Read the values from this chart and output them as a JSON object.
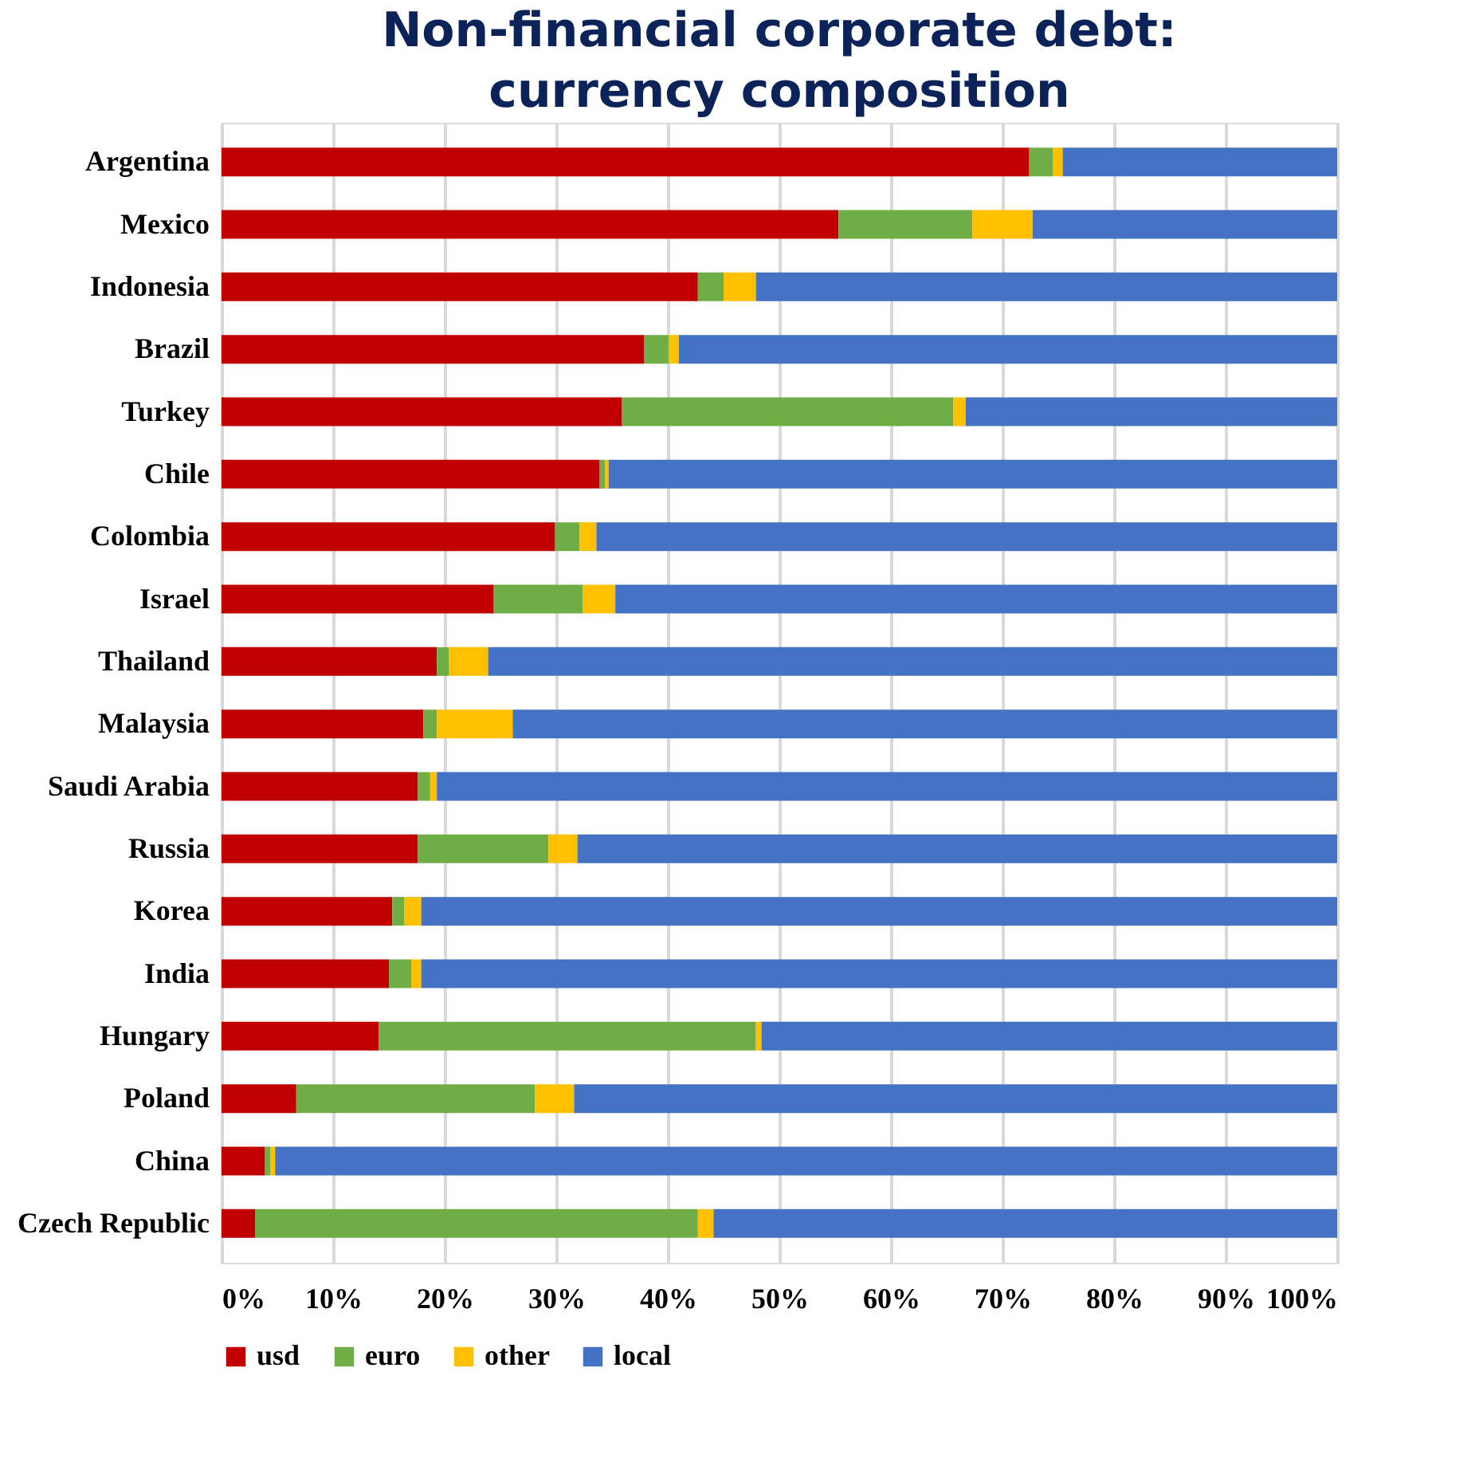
{
  "chart_data": {
    "type": "bar",
    "orientation": "horizontal",
    "stacked": true,
    "title": "Non-financial corporate debt:\ncurrency composition",
    "categories": [
      "Argentina",
      "Mexico",
      "Indonesia",
      "Brazil",
      "Turkey",
      "Chile",
      "Colombia",
      "Israel",
      "Thailand",
      "Malaysia",
      "Saudi Arabia",
      "Russia",
      "Korea",
      "India",
      "Hungary",
      "Poland",
      "China",
      "Czech Republic"
    ],
    "series": [
      {
        "name": "usd",
        "color": "#c00000",
        "values": [
          72.4,
          55.3,
          42.7,
          37.9,
          35.9,
          33.9,
          29.9,
          24.4,
          19.3,
          18.1,
          17.6,
          17.6,
          15.3,
          15.0,
          14.1,
          6.7,
          3.9,
          3.0
        ]
      },
      {
        "name": "euro",
        "color": "#70ad47",
        "values": [
          2.1,
          12.0,
          2.3,
          2.2,
          29.7,
          0.5,
          2.2,
          8.0,
          1.1,
          1.2,
          1.1,
          11.7,
          1.1,
          2.0,
          33.8,
          21.4,
          0.5,
          39.7
        ]
      },
      {
        "name": "other",
        "color": "#ffc000",
        "values": [
          0.9,
          5.4,
          2.9,
          0.9,
          1.1,
          0.3,
          1.5,
          2.9,
          3.5,
          6.8,
          0.6,
          2.6,
          1.5,
          0.9,
          0.5,
          3.5,
          0.4,
          1.4
        ]
      },
      {
        "name": "local",
        "color": "#4472c4",
        "values": [
          24.6,
          27.3,
          52.1,
          59.0,
          33.3,
          65.3,
          66.4,
          64.7,
          76.1,
          73.9,
          80.7,
          68.1,
          82.1,
          82.1,
          51.6,
          68.4,
          95.2,
          55.9
        ]
      }
    ],
    "xlim": [
      0,
      100
    ],
    "xticks": [
      {
        "value": 0,
        "label": "0%"
      },
      {
        "value": 10,
        "label": "10%"
      },
      {
        "value": 20,
        "label": "20%"
      },
      {
        "value": 30,
        "label": "30%"
      },
      {
        "value": 40,
        "label": "40%"
      },
      {
        "value": 50,
        "label": "50%"
      },
      {
        "value": 60,
        "label": "60%"
      },
      {
        "value": 70,
        "label": "70%"
      },
      {
        "value": 80,
        "label": "80%"
      },
      {
        "value": 90,
        "label": "90%"
      },
      {
        "value": 100,
        "label": "100%"
      }
    ],
    "grid": "x",
    "legend": "bottom"
  }
}
